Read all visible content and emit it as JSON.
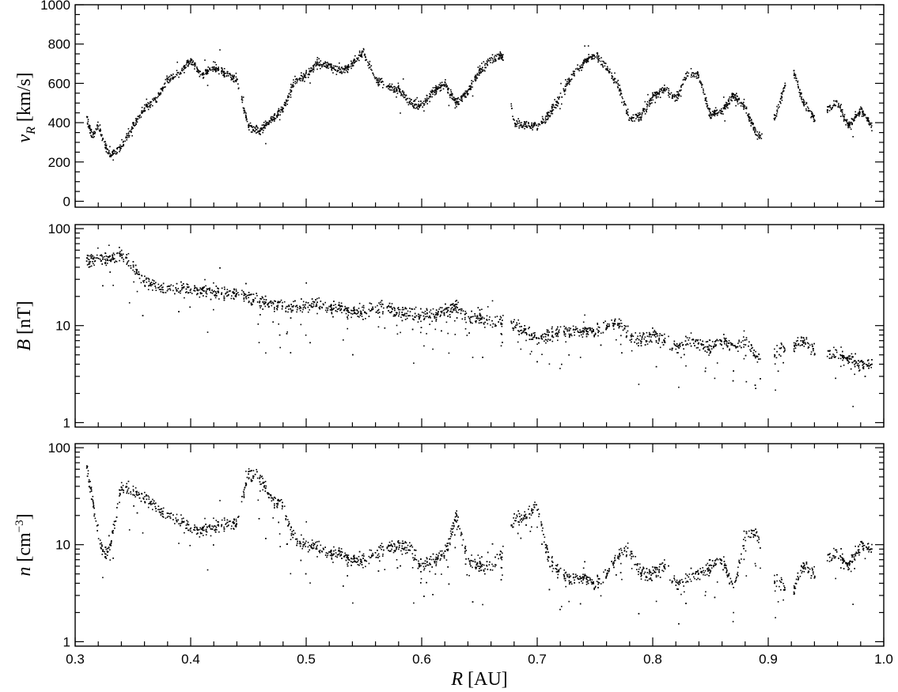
{
  "chart_data": [
    {
      "type": "scatter",
      "panel": "top",
      "ylabel": "v_R [km/s]",
      "ylabel_main": "v",
      "ylabel_sub": "R",
      "ylabel_rest": " [km/s]",
      "xlim": [
        0.3,
        1.0
      ],
      "ylim": [
        -30,
        1000
      ],
      "yscale": "linear",
      "xlabel": "",
      "x_ticks_labeled": false,
      "y_ticks": [
        0,
        200,
        400,
        600,
        800,
        1000
      ],
      "y_tick_labels": [
        "0",
        "200",
        "400",
        "600",
        "800",
        "1000"
      ],
      "y_minor_ticks": [
        50,
        100,
        150,
        250,
        300,
        350,
        450,
        500,
        550,
        650,
        700,
        750,
        850,
        900,
        950
      ],
      "grid": false,
      "series": [
        {
          "profile": [
            [
              0.31,
              420
            ],
            [
              0.315,
              330
            ],
            [
              0.32,
              390
            ],
            [
              0.325,
              300
            ],
            [
              0.33,
              230
            ],
            [
              0.34,
              280
            ],
            [
              0.35,
              380
            ],
            [
              0.36,
              470
            ],
            [
              0.37,
              520
            ],
            [
              0.38,
              620
            ],
            [
              0.39,
              650
            ],
            [
              0.4,
              720
            ],
            [
              0.41,
              640
            ],
            [
              0.42,
              680
            ],
            [
              0.43,
              650
            ],
            [
              0.44,
              620
            ],
            [
              0.45,
              380
            ],
            [
              0.46,
              360
            ],
            [
              0.47,
              420
            ],
            [
              0.48,
              470
            ],
            [
              0.49,
              610
            ],
            [
              0.5,
              640
            ],
            [
              0.51,
              700
            ],
            [
              0.52,
              690
            ],
            [
              0.53,
              660
            ],
            [
              0.54,
              700
            ],
            [
              0.55,
              760
            ],
            [
              0.56,
              620
            ],
            [
              0.57,
              580
            ],
            [
              0.58,
              570
            ],
            [
              0.59,
              500
            ],
            [
              0.6,
              490
            ],
            [
              0.61,
              560
            ],
            [
              0.62,
              600
            ],
            [
              0.63,
              500
            ],
            [
              0.64,
              560
            ],
            [
              0.65,
              660
            ],
            [
              0.66,
              720
            ],
            [
              0.67,
              740
            ],
            [
              0.68,
              400
            ],
            [
              0.69,
              390
            ],
            [
              0.7,
              380
            ],
            [
              0.71,
              440
            ],
            [
              0.72,
              530
            ],
            [
              0.73,
              640
            ],
            [
              0.74,
              700
            ],
            [
              0.75,
              750
            ],
            [
              0.76,
              680
            ],
            [
              0.77,
              590
            ],
            [
              0.78,
              420
            ],
            [
              0.79,
              430
            ],
            [
              0.8,
              530
            ],
            [
              0.81,
              570
            ],
            [
              0.82,
              520
            ],
            [
              0.83,
              650
            ],
            [
              0.84,
              640
            ],
            [
              0.85,
              440
            ],
            [
              0.86,
              460
            ],
            [
              0.87,
              540
            ],
            [
              0.88,
              480
            ],
            [
              0.89,
              340
            ],
            [
              0.9,
              340
            ],
            [
              0.91,
              500
            ],
            [
              0.92,
              700
            ],
            [
              0.93,
              510
            ],
            [
              0.94,
              420
            ],
            [
              0.95,
              460
            ],
            [
              0.96,
              500
            ],
            [
              0.97,
              380
            ],
            [
              0.98,
              470
            ],
            [
              0.99,
              380
            ]
          ],
          "gaps": [
            [
              0.6705,
              0.6775
            ],
            [
              0.895,
              0.905
            ],
            [
              0.915,
              0.922
            ],
            [
              0.941,
              0.951
            ]
          ]
        }
      ]
    },
    {
      "type": "scatter",
      "panel": "middle",
      "ylabel": "B [nT]",
      "ylabel_main": "B",
      "ylabel_rest": " [nT]",
      "xlim": [
        0.3,
        1.0
      ],
      "ylim": [
        0.9,
        110
      ],
      "yscale": "log",
      "xlabel": "",
      "x_ticks_labeled": false,
      "y_ticks": [
        1,
        10,
        100
      ],
      "y_tick_labels": [
        "1",
        "10",
        "100"
      ],
      "y_minor_ticks": [
        2,
        3,
        4,
        5,
        6,
        7,
        8,
        9,
        20,
        30,
        40,
        50,
        60,
        70,
        80,
        90
      ],
      "grid": false,
      "series": [
        {
          "profile": [
            [
              0.31,
              45
            ],
            [
              0.32,
              50
            ],
            [
              0.33,
              48
            ],
            [
              0.34,
              55
            ],
            [
              0.35,
              40
            ],
            [
              0.36,
              28
            ],
            [
              0.37,
              26
            ],
            [
              0.38,
              24
            ],
            [
              0.39,
              23
            ],
            [
              0.4,
              24
            ],
            [
              0.41,
              23
            ],
            [
              0.42,
              22
            ],
            [
              0.43,
              21
            ],
            [
              0.44,
              22
            ],
            [
              0.45,
              20
            ],
            [
              0.46,
              18
            ],
            [
              0.47,
              17
            ],
            [
              0.48,
              16
            ],
            [
              0.49,
              15
            ],
            [
              0.5,
              16
            ],
            [
              0.51,
              16
            ],
            [
              0.52,
              15
            ],
            [
              0.53,
              15
            ],
            [
              0.54,
              14
            ],
            [
              0.55,
              14
            ],
            [
              0.56,
              15
            ],
            [
              0.57,
              15
            ],
            [
              0.58,
              14
            ],
            [
              0.59,
              13
            ],
            [
              0.6,
              13
            ],
            [
              0.61,
              13
            ],
            [
              0.62,
              14
            ],
            [
              0.63,
              16
            ],
            [
              0.64,
              12
            ],
            [
              0.65,
              12
            ],
            [
              0.66,
              11
            ],
            [
              0.67,
              11
            ],
            [
              0.68,
              10
            ],
            [
              0.69,
              9
            ],
            [
              0.7,
              7
            ],
            [
              0.71,
              8
            ],
            [
              0.72,
              8.5
            ],
            [
              0.73,
              9
            ],
            [
              0.74,
              8.5
            ],
            [
              0.75,
              9
            ],
            [
              0.76,
              10
            ],
            [
              0.77,
              11
            ],
            [
              0.78,
              8
            ],
            [
              0.79,
              7
            ],
            [
              0.8,
              8
            ],
            [
              0.81,
              7
            ],
            [
              0.82,
              6
            ],
            [
              0.83,
              7
            ],
            [
              0.84,
              6.5
            ],
            [
              0.85,
              6
            ],
            [
              0.86,
              7
            ],
            [
              0.87,
              6
            ],
            [
              0.88,
              7
            ],
            [
              0.89,
              5
            ],
            [
              0.9,
              5
            ],
            [
              0.91,
              5.5
            ],
            [
              0.92,
              6
            ],
            [
              0.93,
              7
            ],
            [
              0.94,
              5.5
            ],
            [
              0.95,
              5
            ],
            [
              0.96,
              5
            ],
            [
              0.97,
              4.5
            ],
            [
              0.98,
              4
            ],
            [
              0.99,
              4
            ]
          ],
          "gaps": [
            [
              0.6705,
              0.6775
            ],
            [
              0.895,
              0.905
            ],
            [
              0.915,
              0.922
            ],
            [
              0.941,
              0.951
            ]
          ]
        }
      ]
    },
    {
      "type": "scatter",
      "panel": "bottom",
      "ylabel": "n [cm^-3]",
      "ylabel_main": "n",
      "ylabel_rest": " [cm",
      "ylabel_sup": "−3",
      "ylabel_close": "]",
      "xlim": [
        0.3,
        1.0
      ],
      "ylim": [
        0.9,
        110
      ],
      "yscale": "log",
      "xlabel": "R [AU]",
      "xlabel_main": "R",
      "xlabel_rest": " [AU]",
      "x_ticks": [
        0.3,
        0.4,
        0.5,
        0.6,
        0.7,
        0.8,
        0.9,
        1.0
      ],
      "x_tick_labels": [
        "0.3",
        "0.4",
        "0.5",
        "0.6",
        "0.7",
        "0.8",
        "0.9",
        "1.0"
      ],
      "x_minor_ticks": [
        0.32,
        0.34,
        0.36,
        0.38,
        0.42,
        0.44,
        0.46,
        0.48,
        0.52,
        0.54,
        0.56,
        0.58,
        0.62,
        0.64,
        0.66,
        0.68,
        0.72,
        0.74,
        0.76,
        0.78,
        0.82,
        0.84,
        0.86,
        0.88,
        0.92,
        0.94,
        0.96,
        0.98
      ],
      "x_ticks_labeled": true,
      "y_ticks": [
        1,
        10,
        100
      ],
      "y_tick_labels": [
        "1",
        "10",
        "100"
      ],
      "y_minor_ticks": [
        2,
        3,
        4,
        5,
        6,
        7,
        8,
        9,
        20,
        30,
        40,
        50,
        60,
        70,
        80,
        90
      ],
      "grid": false,
      "series": [
        {
          "profile": [
            [
              0.31,
              60
            ],
            [
              0.315,
              30
            ],
            [
              0.32,
              12
            ],
            [
              0.325,
              8
            ],
            [
              0.33,
              9
            ],
            [
              0.34,
              40
            ],
            [
              0.35,
              35
            ],
            [
              0.36,
              30
            ],
            [
              0.37,
              25
            ],
            [
              0.38,
              20
            ],
            [
              0.39,
              17
            ],
            [
              0.4,
              15
            ],
            [
              0.41,
              14
            ],
            [
              0.42,
              15
            ],
            [
              0.43,
              16
            ],
            [
              0.44,
              17
            ],
            [
              0.45,
              55
            ],
            [
              0.46,
              50
            ],
            [
              0.47,
              30
            ],
            [
              0.48,
              25
            ],
            [
              0.49,
              11
            ],
            [
              0.5,
              10
            ],
            [
              0.51,
              9
            ],
            [
              0.52,
              8
            ],
            [
              0.53,
              8
            ],
            [
              0.54,
              7
            ],
            [
              0.55,
              7
            ],
            [
              0.56,
              8
            ],
            [
              0.57,
              9
            ],
            [
              0.58,
              10
            ],
            [
              0.59,
              9
            ],
            [
              0.6,
              6
            ],
            [
              0.61,
              7
            ],
            [
              0.62,
              8
            ],
            [
              0.63,
              20
            ],
            [
              0.64,
              7
            ],
            [
              0.65,
              6
            ],
            [
              0.66,
              6
            ],
            [
              0.67,
              8
            ],
            [
              0.68,
              18
            ],
            [
              0.69,
              20
            ],
            [
              0.7,
              25
            ],
            [
              0.71,
              7
            ],
            [
              0.72,
              5
            ],
            [
              0.73,
              4.5
            ],
            [
              0.74,
              4.5
            ],
            [
              0.75,
              4
            ],
            [
              0.76,
              5
            ],
            [
              0.77,
              8
            ],
            [
              0.78,
              9
            ],
            [
              0.79,
              5
            ],
            [
              0.8,
              5
            ],
            [
              0.81,
              6
            ],
            [
              0.82,
              4
            ],
            [
              0.83,
              4.5
            ],
            [
              0.84,
              5
            ],
            [
              0.85,
              6
            ],
            [
              0.86,
              7
            ],
            [
              0.87,
              3.5
            ],
            [
              0.88,
              12
            ],
            [
              0.89,
              14
            ],
            [
              0.9,
              5
            ],
            [
              0.91,
              4
            ],
            [
              0.92,
              3
            ],
            [
              0.93,
              6
            ],
            [
              0.94,
              5
            ],
            [
              0.95,
              7
            ],
            [
              0.96,
              8
            ],
            [
              0.97,
              6
            ],
            [
              0.98,
              10
            ],
            [
              0.99,
              9
            ]
          ],
          "gaps": [
            [
              0.6705,
              0.6775
            ],
            [
              0.895,
              0.905
            ],
            [
              0.915,
              0.922
            ],
            [
              0.941,
              0.951
            ]
          ]
        }
      ]
    }
  ]
}
